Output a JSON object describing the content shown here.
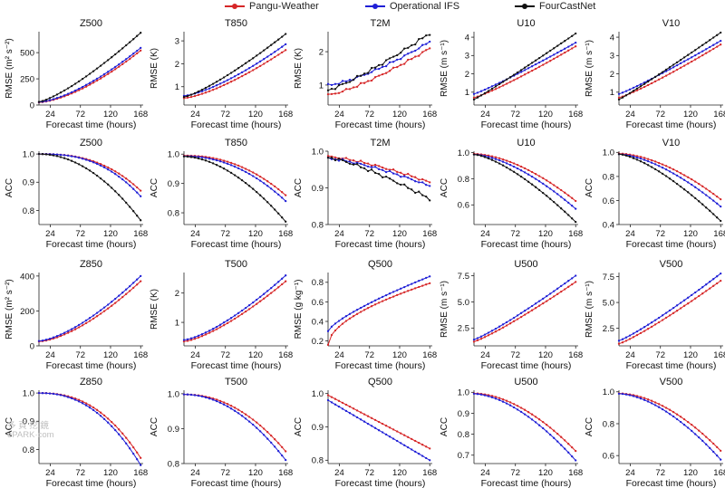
{
  "legend": [
    {
      "name": "Pangu-Weather",
      "color": "#d62728"
    },
    {
      "name": "Operational IFS",
      "color": "#1f1fd6"
    },
    {
      "name": "FourCastNet",
      "color": "#111111"
    }
  ],
  "watermark": {
    "line1": "多 頁 挖 鏡",
    "line2": "ePARK·com"
  },
  "chart_data": [
    {
      "type": "line",
      "title": "Z500",
      "ylabel": "RMSE (m² s⁻²)",
      "xlabel": "Forecast time (hours)",
      "xticks": [
        24,
        72,
        120,
        168
      ],
      "yticks": [
        0,
        250,
        500
      ],
      "ytick_labels": [
        "0",
        "250",
        "500"
      ],
      "xlim": [
        6,
        172
      ],
      "ylim": [
        0,
        700
      ],
      "x_start": 6,
      "x_end": 168,
      "series": [
        {
          "name": "Pangu-Weather",
          "color": "#d62728",
          "start": 25,
          "end": 520,
          "power": 1.55
        },
        {
          "name": "Operational IFS",
          "color": "#1f1fd6",
          "start": 28,
          "end": 545,
          "power": 1.5
        },
        {
          "name": "FourCastNet",
          "color": "#111111",
          "start": 30,
          "end": 690,
          "power": 1.3
        }
      ]
    },
    {
      "type": "line",
      "title": "T850",
      "ylabel": "RMSE (K)",
      "xlabel": "Forecast time (hours)",
      "xticks": [
        24,
        72,
        120,
        168
      ],
      "yticks": [
        1,
        2,
        3
      ],
      "ytick_labels": [
        "1",
        "2",
        "3"
      ],
      "xlim": [
        6,
        172
      ],
      "ylim": [
        0.2,
        3.4
      ],
      "x_start": 6,
      "x_end": 168,
      "series": [
        {
          "name": "Pangu-Weather",
          "color": "#d62728",
          "start": 0.5,
          "end": 2.6,
          "power": 1.4
        },
        {
          "name": "Operational IFS",
          "color": "#1f1fd6",
          "start": 0.6,
          "end": 2.85,
          "power": 1.4
        },
        {
          "name": "FourCastNet",
          "color": "#111111",
          "start": 0.55,
          "end": 3.3,
          "power": 1.25
        }
      ]
    },
    {
      "type": "line",
      "title": "T2M",
      "ylabel": "RMSE (K)",
      "xlabel": "Forecast time (hours)",
      "xticks": [
        24,
        72,
        120,
        168
      ],
      "yticks": [
        1,
        2
      ],
      "ytick_labels": [
        "1",
        "2"
      ],
      "xlim": [
        6,
        172
      ],
      "ylim": [
        0.4,
        2.6
      ],
      "x_start": 6,
      "x_end": 168,
      "series": [
        {
          "name": "Pangu-Weather",
          "color": "#d62728",
          "start": 0.7,
          "end": 2.1,
          "power": 1.3
        },
        {
          "name": "Operational IFS",
          "color": "#1f1fd6",
          "start": 1.0,
          "end": 2.3,
          "power": 1.4
        },
        {
          "name": "FourCastNet",
          "color": "#111111",
          "start": 0.85,
          "end": 2.55,
          "power": 1.2
        }
      ]
    },
    {
      "type": "line",
      "title": "U10",
      "ylabel": "RMSE (m s⁻¹)",
      "xlabel": "Forecast time (hours)",
      "xticks": [
        24,
        72,
        120,
        168
      ],
      "yticks": [
        1,
        2,
        3,
        4
      ],
      "ytick_labels": [
        "1",
        "2",
        "3",
        "4"
      ],
      "xlim": [
        6,
        172
      ],
      "ylim": [
        0.3,
        4.3
      ],
      "x_start": 6,
      "x_end": 168,
      "series": [
        {
          "name": "Pangu-Weather",
          "color": "#d62728",
          "start": 0.7,
          "end": 3.5,
          "power": 1.15
        },
        {
          "name": "Operational IFS",
          "color": "#1f1fd6",
          "start": 0.9,
          "end": 3.7,
          "power": 1.1
        },
        {
          "name": "FourCastNet",
          "color": "#111111",
          "start": 0.6,
          "end": 4.2,
          "power": 1.05
        }
      ]
    },
    {
      "type": "line",
      "title": "V10",
      "ylabel": "RMSE (m s⁻¹)",
      "xlabel": "Forecast time (hours)",
      "xticks": [
        24,
        72,
        120,
        168
      ],
      "yticks": [
        1,
        2,
        3,
        4
      ],
      "ytick_labels": [
        "1",
        "2",
        "3",
        "4"
      ],
      "xlim": [
        6,
        172
      ],
      "ylim": [
        0.3,
        4.3
      ],
      "x_start": 6,
      "x_end": 168,
      "series": [
        {
          "name": "Pangu-Weather",
          "color": "#d62728",
          "start": 0.7,
          "end": 3.6,
          "power": 1.15
        },
        {
          "name": "Operational IFS",
          "color": "#1f1fd6",
          "start": 0.9,
          "end": 3.8,
          "power": 1.1
        },
        {
          "name": "FourCastNet",
          "color": "#111111",
          "start": 0.6,
          "end": 4.25,
          "power": 1.05
        }
      ]
    },
    {
      "type": "line",
      "title": "Z500",
      "ylabel": "ACC",
      "xlabel": "Forecast time (hours)",
      "xticks": [
        24,
        72,
        120,
        168
      ],
      "yticks": [
        0.8,
        0.9,
        1.0
      ],
      "ytick_labels": [
        "0.8",
        "0.9",
        "1.0"
      ],
      "xlim": [
        6,
        172
      ],
      "ylim": [
        0.75,
        1.01
      ],
      "x_start": 6,
      "x_end": 168,
      "series": [
        {
          "name": "Pangu-Weather",
          "color": "#d62728",
          "start": 1.0,
          "end": 0.87,
          "power": 2.6
        },
        {
          "name": "Operational IFS",
          "color": "#1f1fd6",
          "start": 1.0,
          "end": 0.85,
          "power": 2.6
        },
        {
          "name": "FourCastNet",
          "color": "#111111",
          "start": 1.0,
          "end": 0.765,
          "power": 2.0
        }
      ]
    },
    {
      "type": "line",
      "title": "T850",
      "ylabel": "ACC",
      "xlabel": "Forecast time (hours)",
      "xticks": [
        24,
        72,
        120,
        168
      ],
      "yticks": [
        0.8,
        0.9,
        1.0
      ],
      "ytick_labels": [
        "0.8",
        "0.9",
        "1.0"
      ],
      "xlim": [
        6,
        172
      ],
      "ylim": [
        0.76,
        1.01
      ],
      "x_start": 6,
      "x_end": 168,
      "series": [
        {
          "name": "Pangu-Weather",
          "color": "#d62728",
          "start": 0.995,
          "end": 0.86,
          "power": 2.2
        },
        {
          "name": "Operational IFS",
          "color": "#1f1fd6",
          "start": 0.993,
          "end": 0.84,
          "power": 2.1
        },
        {
          "name": "FourCastNet",
          "color": "#111111",
          "start": 0.992,
          "end": 0.77,
          "power": 1.8
        }
      ]
    },
    {
      "type": "line",
      "title": "T2M",
      "ylabel": "ACC",
      "xlabel": "Forecast time (hours)",
      "xticks": [
        24,
        72,
        120,
        168
      ],
      "yticks": [
        0.8,
        0.9,
        1.0
      ],
      "ytick_labels": [
        "0.8",
        "0.9",
        "1.0"
      ],
      "xlim": [
        6,
        172
      ],
      "ylim": [
        0.8,
        1.0
      ],
      "x_start": 6,
      "x_end": 168,
      "series": [
        {
          "name": "Pangu-Weather",
          "color": "#d62728",
          "start": 0.985,
          "end": 0.915,
          "power": 1.4
        },
        {
          "name": "Operational IFS",
          "color": "#1f1fd6",
          "start": 0.98,
          "end": 0.905,
          "power": 1.4
        },
        {
          "name": "FourCastNet",
          "color": "#111111",
          "start": 0.983,
          "end": 0.87,
          "power": 1.3
        }
      ]
    },
    {
      "type": "line",
      "title": "U10",
      "ylabel": "ACC",
      "xlabel": "Forecast time (hours)",
      "xticks": [
        24,
        72,
        120,
        168
      ],
      "yticks": [
        0.6,
        0.8,
        1.0
      ],
      "ytick_labels": [
        "0.6",
        "0.8",
        "1.0"
      ],
      "xlim": [
        6,
        172
      ],
      "ylim": [
        0.45,
        1.01
      ],
      "x_start": 6,
      "x_end": 168,
      "series": [
        {
          "name": "Pangu-Weather",
          "color": "#d62728",
          "start": 0.99,
          "end": 0.63,
          "power": 1.7
        },
        {
          "name": "Operational IFS",
          "color": "#1f1fd6",
          "start": 0.985,
          "end": 0.57,
          "power": 1.6
        },
        {
          "name": "FourCastNet",
          "color": "#111111",
          "start": 0.985,
          "end": 0.47,
          "power": 1.45
        }
      ]
    },
    {
      "type": "line",
      "title": "V10",
      "ylabel": "ACC",
      "xlabel": "Forecast time (hours)",
      "xticks": [
        24,
        72,
        120,
        168
      ],
      "yticks": [
        0.4,
        0.6,
        0.8,
        1.0
      ],
      "ytick_labels": [
        "0.4",
        "0.6",
        "0.8",
        "1.0"
      ],
      "xlim": [
        6,
        172
      ],
      "ylim": [
        0.4,
        1.01
      ],
      "x_start": 6,
      "x_end": 168,
      "series": [
        {
          "name": "Pangu-Weather",
          "color": "#d62728",
          "start": 0.99,
          "end": 0.61,
          "power": 1.7
        },
        {
          "name": "Operational IFS",
          "color": "#1f1fd6",
          "start": 0.985,
          "end": 0.55,
          "power": 1.6
        },
        {
          "name": "FourCastNet",
          "color": "#111111",
          "start": 0.985,
          "end": 0.43,
          "power": 1.45
        }
      ]
    },
    {
      "type": "line",
      "title": "Z850",
      "ylabel": "RMSE (m² s⁻²)",
      "xlabel": "Forecast time (hours)",
      "xticks": [
        24,
        72,
        120,
        168
      ],
      "yticks": [
        0,
        200,
        400
      ],
      "ytick_labels": [
        "0",
        "200",
        "400"
      ],
      "xlim": [
        6,
        172
      ],
      "ylim": [
        0,
        420
      ],
      "x_start": 6,
      "x_end": 168,
      "series": [
        {
          "name": "Pangu-Weather",
          "color": "#d62728",
          "start": 25,
          "end": 370,
          "power": 1.55
        },
        {
          "name": "Operational IFS",
          "color": "#1f1fd6",
          "start": 28,
          "end": 400,
          "power": 1.5
        }
      ]
    },
    {
      "type": "line",
      "title": "T500",
      "ylabel": "RMSE (K)",
      "xlabel": "Forecast time (hours)",
      "xticks": [
        24,
        72,
        120,
        168
      ],
      "yticks": [
        1,
        2
      ],
      "ytick_labels": [
        "1",
        "2"
      ],
      "xlim": [
        6,
        172
      ],
      "ylim": [
        0.2,
        2.7
      ],
      "x_start": 6,
      "x_end": 168,
      "series": [
        {
          "name": "Pangu-Weather",
          "color": "#d62728",
          "start": 0.35,
          "end": 2.4,
          "power": 1.4
        },
        {
          "name": "Operational IFS",
          "color": "#1f1fd6",
          "start": 0.4,
          "end": 2.6,
          "power": 1.4
        }
      ]
    },
    {
      "type": "line",
      "title": "Q500",
      "ylabel": "RMSE (g kg⁻¹)",
      "xlabel": "Forecast time (hours)",
      "xticks": [
        24,
        72,
        120,
        168
      ],
      "yticks": [
        0.2,
        0.4,
        0.6,
        0.8
      ],
      "ytick_labels": [
        "0.2",
        "0.4",
        "0.6",
        "0.8"
      ],
      "xlim": [
        6,
        172
      ],
      "ylim": [
        0.15,
        0.9
      ],
      "x_start": 6,
      "x_end": 168,
      "series": [
        {
          "name": "Pangu-Weather",
          "color": "#d62728",
          "start": 0.16,
          "end": 0.79,
          "power": 0.55
        },
        {
          "name": "Operational IFS",
          "color": "#1f1fd6",
          "start": 0.3,
          "end": 0.86,
          "power": 0.75
        }
      ]
    },
    {
      "type": "line",
      "title": "U500",
      "ylabel": "RMSE (m s⁻¹)",
      "xlabel": "Forecast time (hours)",
      "xticks": [
        24,
        72,
        120,
        168
      ],
      "yticks": [
        2.5,
        5.0,
        7.5
      ],
      "ytick_labels": [
        "2.5",
        "5.0",
        "7.5"
      ],
      "xlim": [
        6,
        172
      ],
      "ylim": [
        0.8,
        7.8
      ],
      "x_start": 6,
      "x_end": 168,
      "series": [
        {
          "name": "Pangu-Weather",
          "color": "#d62728",
          "start": 1.2,
          "end": 6.9,
          "power": 1.15
        },
        {
          "name": "Operational IFS",
          "color": "#1f1fd6",
          "start": 1.4,
          "end": 7.5,
          "power": 1.15
        }
      ]
    },
    {
      "type": "line",
      "title": "V500",
      "ylabel": "RMSE (m s⁻¹)",
      "xlabel": "Forecast time (hours)",
      "xticks": [
        24,
        72,
        120,
        168
      ],
      "yticks": [
        2.5,
        5.0,
        7.5
      ],
      "ytick_labels": [
        "2.5",
        "5.0",
        "7.5"
      ],
      "xlim": [
        6,
        172
      ],
      "ylim": [
        0.8,
        7.9
      ],
      "x_start": 6,
      "x_end": 168,
      "series": [
        {
          "name": "Pangu-Weather",
          "color": "#d62728",
          "start": 1.0,
          "end": 7.1,
          "power": 1.15
        },
        {
          "name": "Operational IFS",
          "color": "#1f1fd6",
          "start": 1.3,
          "end": 7.8,
          "power": 1.15
        }
      ]
    },
    {
      "type": "line",
      "title": "Z850",
      "ylabel": "ACC",
      "xlabel": "Forecast time (hours)",
      "xticks": [
        24,
        72,
        120,
        168
      ],
      "yticks": [
        0.8,
        0.9,
        1.0
      ],
      "ytick_labels": [
        "0.8",
        "0.9",
        "1.0"
      ],
      "xlim": [
        6,
        172
      ],
      "ylim": [
        0.75,
        1.01
      ],
      "x_start": 6,
      "x_end": 168,
      "series": [
        {
          "name": "Pangu-Weather",
          "color": "#d62728",
          "start": 1.0,
          "end": 0.77,
          "power": 2.4
        },
        {
          "name": "Operational IFS",
          "color": "#1f1fd6",
          "start": 1.0,
          "end": 0.745,
          "power": 2.3
        }
      ]
    },
    {
      "type": "line",
      "title": "T500",
      "ylabel": "ACC",
      "xlabel": "Forecast time (hours)",
      "xticks": [
        24,
        72,
        120,
        168
      ],
      "yticks": [
        0.8,
        0.9,
        1.0
      ],
      "ytick_labels": [
        "0.8",
        "0.9",
        "1.0"
      ],
      "xlim": [
        6,
        172
      ],
      "ylim": [
        0.8,
        1.01
      ],
      "x_start": 6,
      "x_end": 168,
      "series": [
        {
          "name": "Pangu-Weather",
          "color": "#d62728",
          "start": 0.998,
          "end": 0.835,
          "power": 2.1
        },
        {
          "name": "Operational IFS",
          "color": "#1f1fd6",
          "start": 0.998,
          "end": 0.81,
          "power": 2.0
        }
      ]
    },
    {
      "type": "line",
      "title": "Q500",
      "ylabel": "ACC",
      "xlabel": "Forecast time (hours)",
      "xticks": [
        24,
        72,
        120,
        168
      ],
      "yticks": [
        0.8,
        0.9,
        1.0
      ],
      "ytick_labels": [
        "0.8",
        "0.9",
        "1.0"
      ],
      "xlim": [
        6,
        172
      ],
      "ylim": [
        0.79,
        1.01
      ],
      "x_start": 6,
      "x_end": 168,
      "series": [
        {
          "name": "Pangu-Weather",
          "color": "#d62728",
          "start": 0.995,
          "end": 0.835,
          "power": 1.0
        },
        {
          "name": "Operational IFS",
          "color": "#1f1fd6",
          "start": 0.98,
          "end": 0.8,
          "power": 1.0
        }
      ]
    },
    {
      "type": "line",
      "title": "U500",
      "ylabel": "ACC",
      "xlabel": "Forecast time (hours)",
      "xticks": [
        24,
        72,
        120,
        168
      ],
      "yticks": [
        0.7,
        0.8,
        0.9,
        1.0
      ],
      "ytick_labels": [
        "0.7",
        "0.8",
        "0.9",
        "1.0"
      ],
      "xlim": [
        6,
        172
      ],
      "ylim": [
        0.66,
        1.01
      ],
      "x_start": 6,
      "x_end": 168,
      "series": [
        {
          "name": "Pangu-Weather",
          "color": "#d62728",
          "start": 0.995,
          "end": 0.72,
          "power": 1.8
        },
        {
          "name": "Operational IFS",
          "color": "#1f1fd6",
          "start": 0.993,
          "end": 0.675,
          "power": 1.7
        }
      ]
    },
    {
      "type": "line",
      "title": "V500",
      "ylabel": "ACC",
      "xlabel": "Forecast time (hours)",
      "xticks": [
        24,
        72,
        120,
        168
      ],
      "yticks": [
        0.6,
        0.8,
        1.0
      ],
      "ytick_labels": [
        "0.6",
        "0.8",
        "1.0"
      ],
      "xlim": [
        6,
        172
      ],
      "ylim": [
        0.55,
        1.01
      ],
      "x_start": 6,
      "x_end": 168,
      "series": [
        {
          "name": "Pangu-Weather",
          "color": "#d62728",
          "start": 0.99,
          "end": 0.63,
          "power": 1.8
        },
        {
          "name": "Operational IFS",
          "color": "#1f1fd6",
          "start": 0.988,
          "end": 0.575,
          "power": 1.7
        }
      ]
    }
  ]
}
